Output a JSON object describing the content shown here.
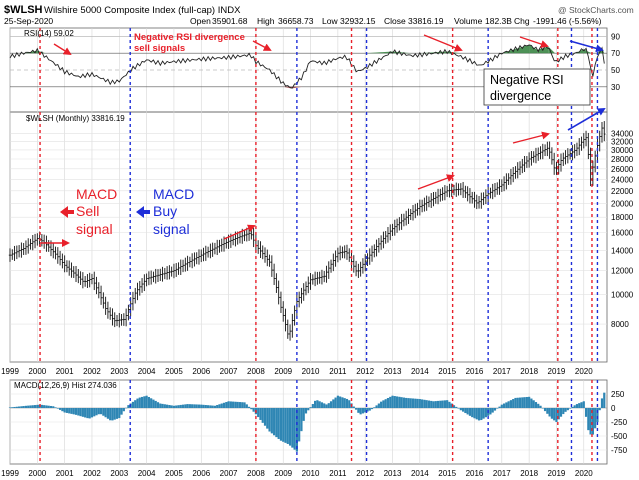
{
  "header": {
    "symbol": "$WLSH",
    "description": "Wilshire 5000 Composite Index (full-cap)  INDX",
    "date": "25-Sep-2020",
    "open_label": "Open",
    "open": "35901.68",
    "high_label": "High",
    "high": "36658.73",
    "low_label": "Low",
    "low": "32932.15",
    "close_label": "Close",
    "close": "33816.19",
    "volume_label": "Volume",
    "volume": "182.3B",
    "chg_label": "Chg",
    "chg": "-1991.46 (-5.56%)",
    "watermark": "@ StockCharts.com"
  },
  "panels": {
    "rsi_label": "RSI(14) 59.02",
    "price_label": "$WLSH (Monthly) 33816.19",
    "macd_label": "MACD(12,26,9) Hist 274.036"
  },
  "annotations": {
    "rsi_title_line1": "Negative RSI divergence",
    "rsi_title_line2": "sell signals",
    "sell_line1": "MACD",
    "sell_line2": "Sell",
    "sell_line3": "signal",
    "buy_line1": "MACD",
    "buy_line2": "Buy",
    "buy_line3": "signal",
    "box_line1": "Negative RSI",
    "box_line2": "divergence"
  },
  "colors": {
    "red": "#e8202a",
    "blue": "#1e2ed8",
    "macd_bar": "#2e86b4",
    "rsi_over": "#2f7f3a",
    "rsi_under": "#a0484c"
  },
  "chart_data": {
    "type": "line",
    "title": "Wilshire 5000 Composite Index (full-cap) - Monthly",
    "x_axis_years": [
      "1999",
      "2000",
      "2001",
      "2002",
      "2003",
      "2004",
      "2005",
      "2006",
      "2007",
      "2008",
      "2009",
      "2010",
      "2011",
      "2012",
      "2013",
      "2014",
      "2015",
      "2016",
      "2017",
      "2018",
      "2019",
      "2020"
    ],
    "price": {
      "scale": "log",
      "ylim": [
        6000,
        40000
      ],
      "y_ticks": [
        8000,
        10000,
        12000,
        14000,
        16000,
        18000,
        20000,
        22000,
        24000,
        26000,
        28000,
        30000,
        32000,
        34000
      ],
      "series": [
        {
          "name": "$WLSH",
          "x": [
            1999.0,
            1999.5,
            2000.0,
            2000.2,
            2000.7,
            2001.0,
            2001.7,
            2002.0,
            2002.5,
            2002.8,
            2003.2,
            2003.6,
            2004.0,
            2005.0,
            2006.0,
            2007.0,
            2007.8,
            2008.0,
            2008.5,
            2008.9,
            2009.2,
            2009.5,
            2010.0,
            2010.5,
            2011.0,
            2011.3,
            2011.7,
            2012.0,
            2013.0,
            2014.0,
            2015.0,
            2015.5,
            2016.1,
            2016.5,
            2017.0,
            2018.0,
            2018.7,
            2018.95,
            2019.2,
            2019.7,
            2020.0,
            2020.1,
            2020.25,
            2020.5,
            2020.67,
            2020.75
          ],
          "values": [
            13500,
            14200,
            15300,
            15000,
            13500,
            12500,
            11000,
            11300,
            9000,
            8200,
            8300,
            10200,
            11300,
            12000,
            13500,
            15000,
            16000,
            14500,
            12800,
            9200,
            7200,
            9500,
            11200,
            11500,
            13700,
            13900,
            11800,
            12900,
            16500,
            19500,
            22000,
            22300,
            20000,
            21500,
            23000,
            28000,
            30500,
            25500,
            28000,
            30000,
            32500,
            33000,
            24000,
            31000,
            35500,
            33816
          ]
        }
      ]
    },
    "rsi": {
      "ylim": [
        0,
        100
      ],
      "y_ticks": [
        30,
        50,
        70,
        90
      ],
      "value": 59.02,
      "x": [
        1999.0,
        1999.5,
        2000.0,
        2000.3,
        2000.7,
        2001.0,
        2001.5,
        2002.0,
        2002.7,
        2003.0,
        2003.5,
        2004.0,
        2004.5,
        2005.0,
        2006.0,
        2007.0,
        2007.8,
        2008.0,
        2008.5,
        2009.0,
        2009.3,
        2009.7,
        2010.0,
        2010.5,
        2011.0,
        2011.3,
        2011.7,
        2012.0,
        2013.0,
        2013.7,
        2014.0,
        2015.0,
        2015.5,
        2015.9,
        2016.2,
        2016.6,
        2017.0,
        2017.5,
        2018.0,
        2018.3,
        2018.7,
        2018.95,
        2019.3,
        2019.7,
        2020.0,
        2020.15,
        2020.3,
        2020.5,
        2020.67,
        2020.75
      ],
      "values": [
        66,
        70,
        73,
        66,
        56,
        48,
        42,
        45,
        35,
        37,
        52,
        62,
        58,
        60,
        63,
        65,
        68,
        60,
        50,
        34,
        28,
        42,
        61,
        58,
        64,
        66,
        48,
        52,
        72,
        67,
        68,
        72,
        66,
        60,
        55,
        62,
        70,
        75,
        80,
        74,
        78,
        59,
        66,
        70,
        75,
        72,
        40,
        66,
        76,
        59
      ]
    },
    "macd_hist": {
      "ylim": [
        -1000,
        500
      ],
      "y_ticks": [
        -750,
        -500,
        -250,
        0,
        250
      ],
      "value": 274.036,
      "x": [
        1999.0,
        1999.6,
        2000.1,
        2000.6,
        2001.0,
        2001.4,
        2001.9,
        2002.3,
        2002.7,
        2003.0,
        2003.3,
        2003.7,
        2004.0,
        2004.5,
        2005.0,
        2005.5,
        2006.0,
        2006.5,
        2007.0,
        2007.6,
        2008.0,
        2008.5,
        2008.9,
        2009.2,
        2009.5,
        2009.8,
        2010.2,
        2010.6,
        2011.0,
        2011.4,
        2011.8,
        2012.2,
        2012.6,
        2013.0,
        2013.5,
        2014.0,
        2014.5,
        2015.0,
        2015.5,
        2015.9,
        2016.2,
        2016.6,
        2017.0,
        2017.5,
        2018.0,
        2018.4,
        2018.8,
        2019.0,
        2019.3,
        2019.7,
        2020.0,
        2020.15,
        2020.3,
        2020.5,
        2020.67,
        2020.75
      ],
      "values": [
        10,
        40,
        60,
        30,
        -80,
        -120,
        -190,
        -100,
        -230,
        -180,
        40,
        180,
        220,
        80,
        40,
        70,
        60,
        40,
        120,
        100,
        -110,
        -420,
        -580,
        -650,
        -780,
        -120,
        150,
        60,
        220,
        150,
        -120,
        -40,
        120,
        220,
        180,
        160,
        120,
        140,
        -40,
        -160,
        -230,
        -110,
        60,
        180,
        200,
        50,
        -180,
        -250,
        -80,
        60,
        120,
        -380,
        -520,
        -250,
        180,
        274
      ]
    },
    "signals": {
      "macd_sell_years": [
        2000.1,
        2008.0,
        2011.5,
        2015.2,
        2019.05,
        2020.3
      ],
      "macd_buy_years": [
        2003.4,
        2009.5,
        2012.05,
        2016.5,
        2019.55,
        2020.5
      ]
    }
  }
}
